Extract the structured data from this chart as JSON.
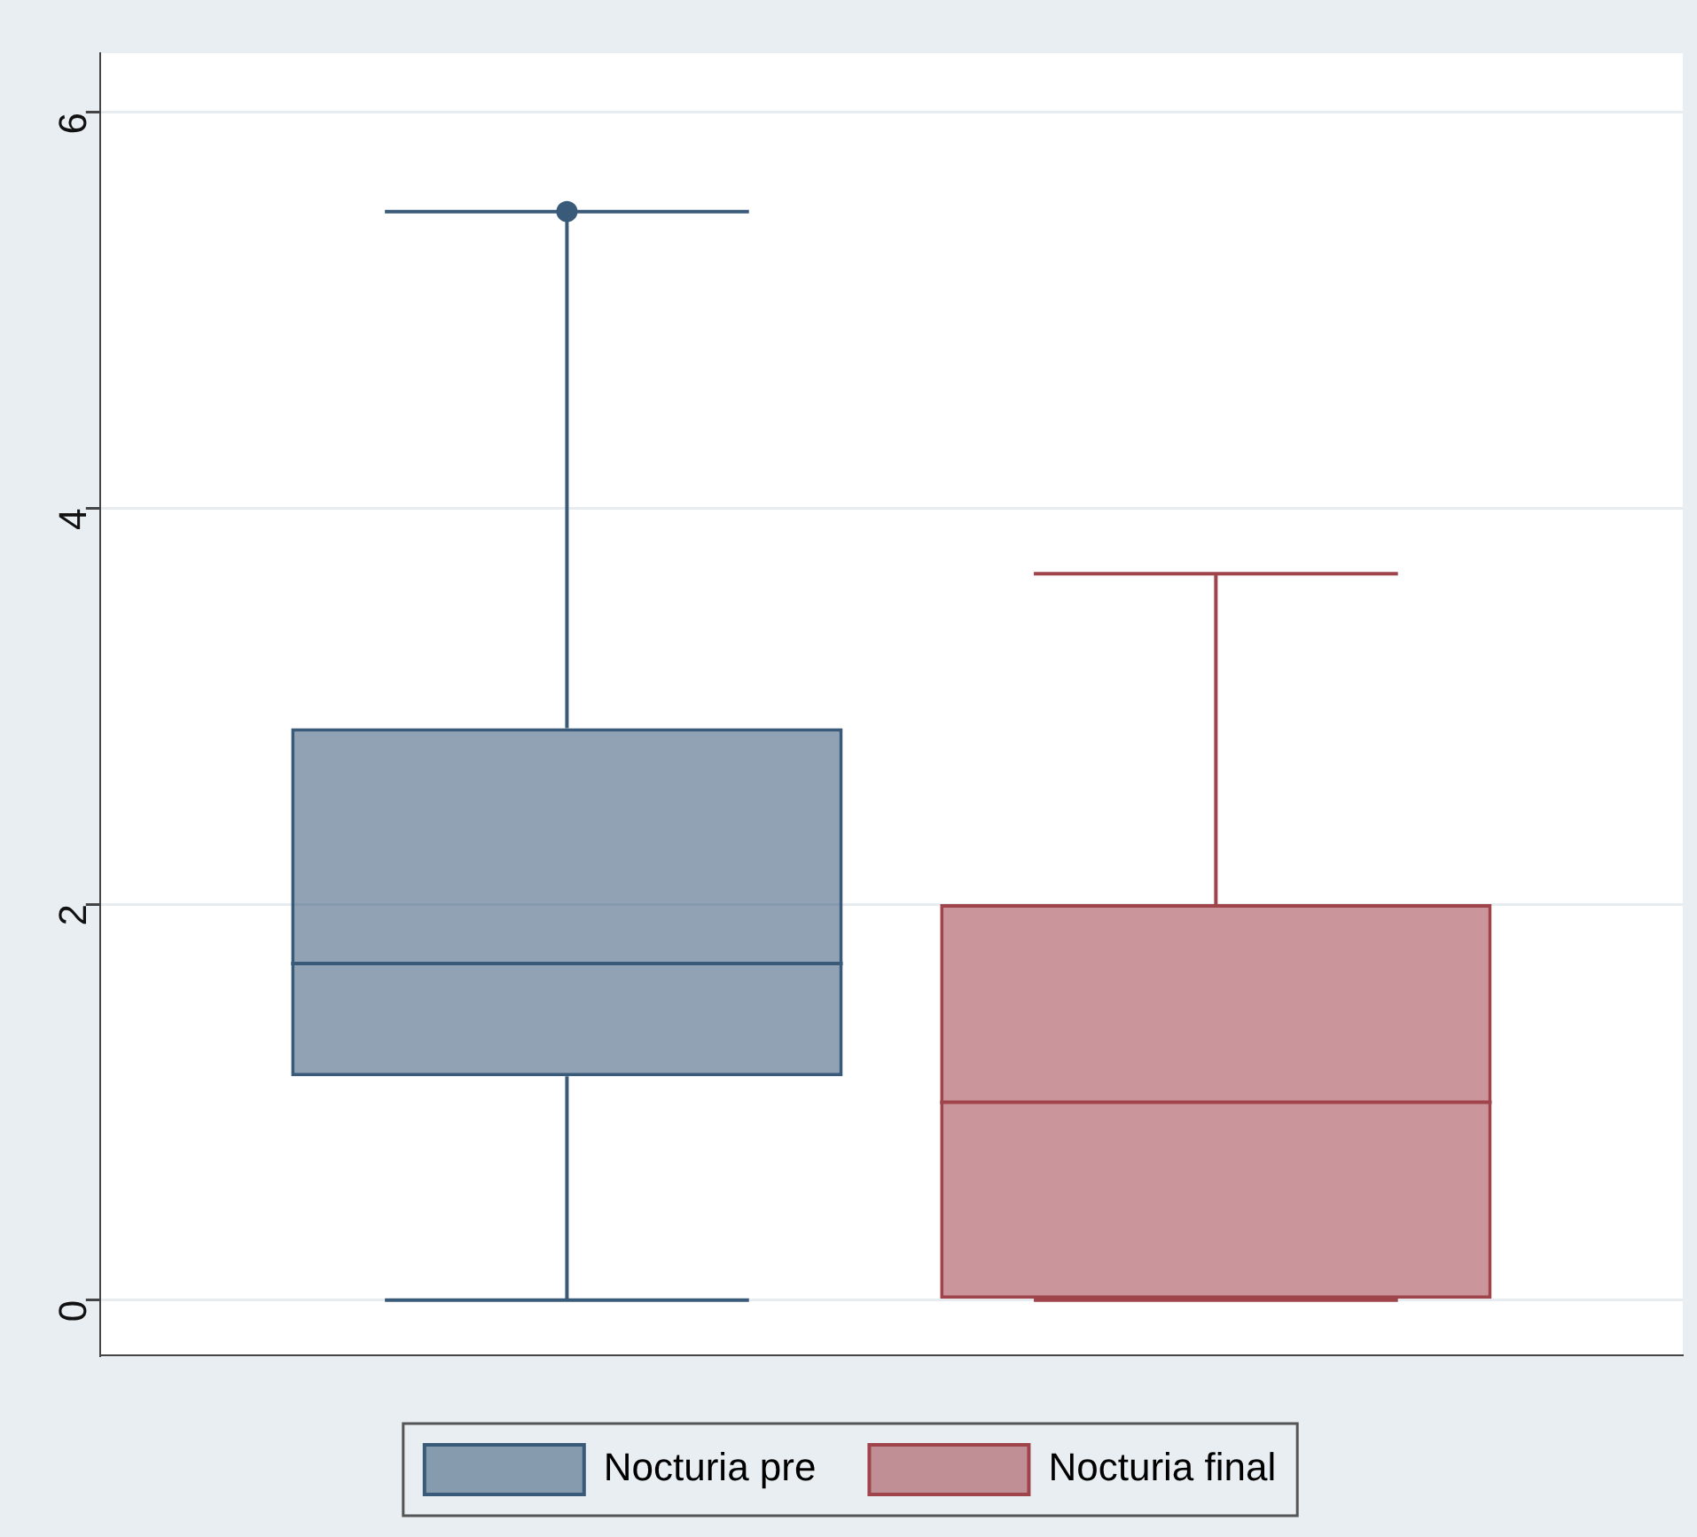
{
  "chart_data": {
    "type": "box",
    "categories": [
      null
    ],
    "series": [
      {
        "name": "Nocturia pre",
        "color": "#3a5a7a",
        "boxes": [
          {
            "low": 0,
            "q1": 1.13,
            "median": 1.7,
            "q3": 2.89,
            "high": 5.5,
            "outliers": [
              5.5
            ]
          }
        ]
      },
      {
        "name": "Nocturia final",
        "color": "#a0444c",
        "boxes": [
          {
            "low": 0,
            "q1": 0,
            "median": 1.0,
            "q3": 2.0,
            "high": 3.67
          }
        ]
      }
    ],
    "ylim": [
      -0.28,
      6.3
    ],
    "yticks": [
      0,
      2,
      4,
      6
    ],
    "grid": "y",
    "legend": "bottom"
  }
}
